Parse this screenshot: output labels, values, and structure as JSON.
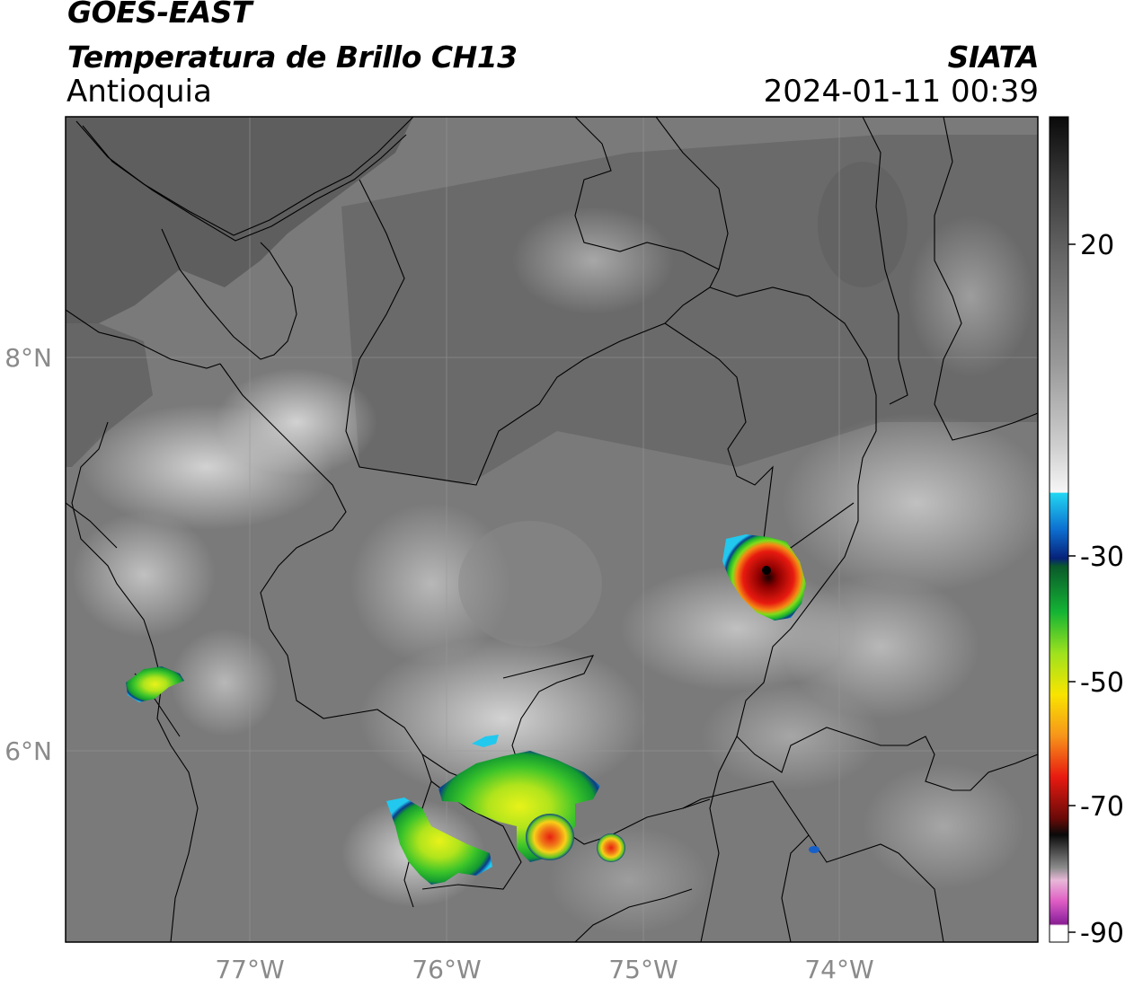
{
  "header": {
    "title_line1": "GOES-EAST",
    "title_line2": "Temperatura de Brillo CH13",
    "brand": "SIATA",
    "region": "Antioquia",
    "datetime": "2024-01-11 00:39"
  },
  "axes": {
    "lat_labels": [
      "8°N",
      "6°N"
    ],
    "lon_labels": [
      "77°W",
      "76°W",
      "75°W",
      "74°W"
    ]
  },
  "colorbar": {
    "ticks": [
      "20",
      "-30",
      "-50",
      "-70",
      "-90"
    ]
  }
}
